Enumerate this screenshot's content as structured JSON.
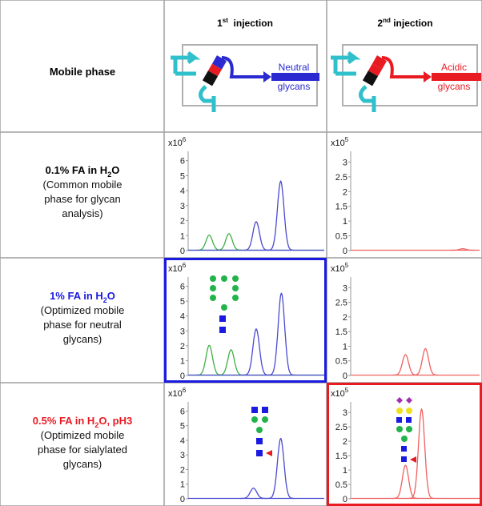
{
  "header": {
    "label": "Mobile phase",
    "injections": [
      {
        "parts": [
          "1",
          "st",
          "  injection"
        ],
        "product": [
          "Neutral",
          "glycans"
        ],
        "color": "#2a2ad0"
      },
      {
        "parts": [
          "2",
          "nd",
          " injection"
        ],
        "product": [
          "Acidic",
          "glycans"
        ],
        "color": "#e81a22"
      }
    ]
  },
  "rows": [
    {
      "label": {
        "title": [
          "0.1% FA in H",
          "2",
          "O"
        ],
        "note": [
          "(Common mobile",
          "phase for glycan",
          "analysis)"
        ],
        "color": "#000000"
      },
      "charts": [
        {
          "type": "line",
          "multiplier": [
            "x10",
            "6"
          ],
          "ylim": [
            0,
            6.3
          ],
          "yticks": [
            0,
            1,
            2,
            3,
            4,
            5,
            6
          ],
          "xlim": [
            0,
            100
          ],
          "series": [
            {
              "color": "#3cb043",
              "peaks": [
                {
                  "x": 15.5,
                  "height": 1.0
                },
                {
                  "x": 30,
                  "height": 1.1
                }
              ]
            },
            {
              "color": "#4a4ad0",
              "peaks": [
                {
                  "x": 50,
                  "height": 1.9
                },
                {
                  "x": 68,
                  "height": 4.6
                }
              ]
            }
          ]
        },
        {
          "type": "line",
          "multiplier": [
            "x10",
            "5"
          ],
          "ylim": [
            0,
            3.2
          ],
          "yticks": [
            0,
            0.5,
            1,
            1.5,
            2,
            2.5,
            3
          ],
          "xlim": [
            0,
            100
          ],
          "series": [
            {
              "color": "#f06060",
              "peaks": [
                {
                  "x": 87,
                  "height": 0.05
                }
              ]
            }
          ]
        }
      ]
    },
    {
      "label": {
        "title": [
          "1% FA in H",
          "2",
          "O"
        ],
        "note": [
          "(Optimized mobile",
          "phase for neutral",
          "glycans)"
        ],
        "color": "#1a1ae0"
      },
      "charts": [
        {
          "type": "line",
          "multiplier": [
            "x10",
            "6"
          ],
          "ylim": [
            0,
            6.3
          ],
          "yticks": [
            0,
            1,
            2,
            3,
            4,
            5,
            6
          ],
          "xlim": [
            0,
            100
          ],
          "border_color": "#1a1ae0",
          "series": [
            {
              "color": "#3cb043",
              "peaks": [
                {
                  "x": 15.5,
                  "height": 2.0
                },
                {
                  "x": 31.5,
                  "height": 1.7
                }
              ]
            },
            {
              "color": "#4a4ad0",
              "peaks": [
                {
                  "x": 50,
                  "height": 3.1
                },
                {
                  "x": 68.5,
                  "height": 5.5
                }
              ]
            }
          ]
        },
        {
          "type": "line",
          "multiplier": [
            "x10",
            "5"
          ],
          "ylim": [
            0,
            3.2
          ],
          "yticks": [
            0,
            0.5,
            1,
            1.5,
            2,
            2.5,
            3
          ],
          "xlim": [
            0,
            100
          ],
          "series": [
            {
              "color": "#f06060",
              "peaks": [
                {
                  "x": 42.5,
                  "height": 0.7
                },
                {
                  "x": 58,
                  "height": 0.9
                }
              ]
            }
          ]
        }
      ]
    },
    {
      "label": {
        "title": [
          "0.5% FA in H",
          "2",
          "O, pH3"
        ],
        "note": [
          "(Optimized mobile",
          "phase for sialylated",
          "glycans)"
        ],
        "color": "#e81a22"
      },
      "charts": [
        {
          "type": "line",
          "multiplier": [
            "x10",
            "6"
          ],
          "ylim": [
            0,
            6.3
          ],
          "yticks": [
            0,
            1,
            2,
            3,
            4,
            5,
            6
          ],
          "xlim": [
            0,
            100
          ],
          "series": [
            {
              "color": "#4a4ad0",
              "peaks": [
                {
                  "x": 48,
                  "height": 0.7
                },
                {
                  "x": 68,
                  "height": 4.1
                }
              ]
            }
          ]
        },
        {
          "type": "line",
          "multiplier": [
            "x10",
            "5"
          ],
          "ylim": [
            0,
            3.2
          ],
          "yticks": [
            0,
            0.5,
            1,
            1.5,
            2,
            2.5,
            3
          ],
          "xlim": [
            0,
            100
          ],
          "border_color": "#e81a22",
          "series": [
            {
              "color": "#f06060",
              "peaks": [
                {
                  "x": 42.5,
                  "height": 1.15
                },
                {
                  "x": 55,
                  "height": 3.1
                }
              ]
            }
          ]
        }
      ]
    }
  ]
}
